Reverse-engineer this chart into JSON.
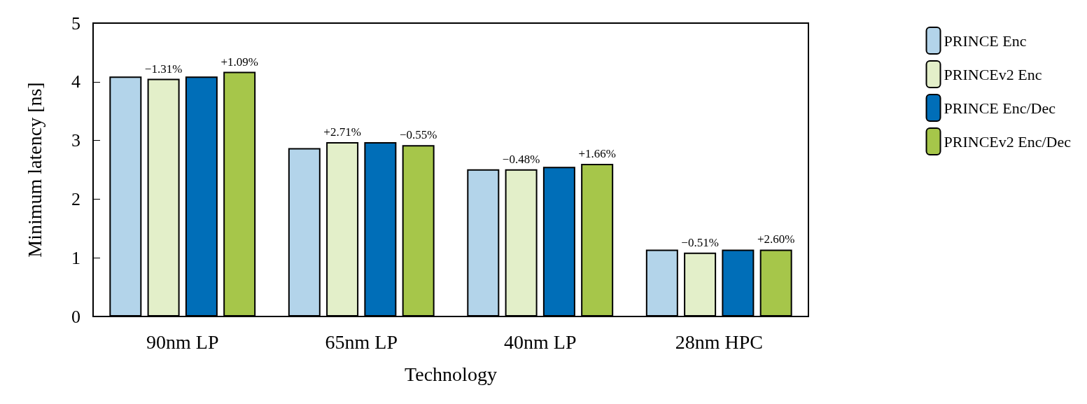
{
  "chart_data": {
    "type": "bar",
    "xlabel": "Technology",
    "ylabel": "Minimum latency [ns]",
    "categories": [
      "90nm LP",
      "65nm LP",
      "40nm LP",
      "28nm HPC"
    ],
    "series": [
      {
        "name": "PRINCE Enc",
        "color": "#b3d4ea",
        "values": [
          4.09,
          2.87,
          2.51,
          1.14
        ]
      },
      {
        "name": "PRINCEv2 Enc",
        "color": "#e3efc9",
        "values": [
          4.05,
          2.97,
          2.51,
          1.09
        ]
      },
      {
        "name": "PRINCE Enc/Dec",
        "color": "#006eb8",
        "values": [
          4.09,
          2.97,
          2.55,
          1.14
        ]
      },
      {
        "name": "PRINCEv2 Enc/Dec",
        "color": "#a6c64a",
        "values": [
          4.17,
          2.92,
          2.6,
          1.14
        ]
      }
    ],
    "annotations": [
      "−1.31%",
      "+1.09%",
      "+2.71%",
      "−0.55%",
      "−0.48%",
      "+1.66%",
      "−0.51%",
      "+2.60%"
    ],
    "ylim": [
      0,
      5
    ],
    "yticks": [
      0,
      1,
      2,
      3,
      4,
      5
    ],
    "grid": false,
    "legend": "right"
  }
}
